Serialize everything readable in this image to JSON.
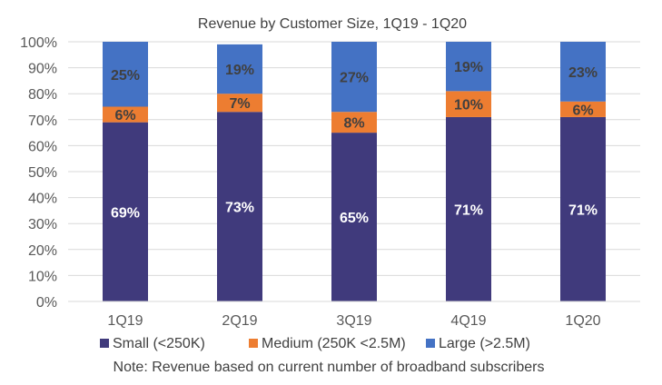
{
  "chart_data": {
    "type": "bar",
    "stacked": true,
    "title": "Revenue by Customer Size, 1Q19 - 1Q20",
    "categories": [
      "1Q19",
      "2Q19",
      "3Q19",
      "4Q19",
      "1Q20"
    ],
    "series": [
      {
        "name": "Small (<250K)",
        "color": "#403A7C",
        "label_color": "#FFFFFF",
        "values": [
          69,
          73,
          65,
          71,
          71
        ]
      },
      {
        "name": "Medium (250K <2.5M)",
        "color": "#ED7D31",
        "label_color": "#404040",
        "values": [
          6,
          7,
          8,
          10,
          6
        ]
      },
      {
        "name": "Large (>2.5M)",
        "color": "#4472C4",
        "label_color": "#404040",
        "values": [
          25,
          19,
          27,
          19,
          23
        ]
      }
    ],
    "ylim": [
      0,
      100
    ],
    "yticks": [
      "0%",
      "10%",
      "20%",
      "30%",
      "40%",
      "50%",
      "60%",
      "70%",
      "80%",
      "90%",
      "100%"
    ],
    "grid": true,
    "legend_position": "bottom",
    "note": "Note: Revenue based on current number of  broadband subscribers"
  }
}
